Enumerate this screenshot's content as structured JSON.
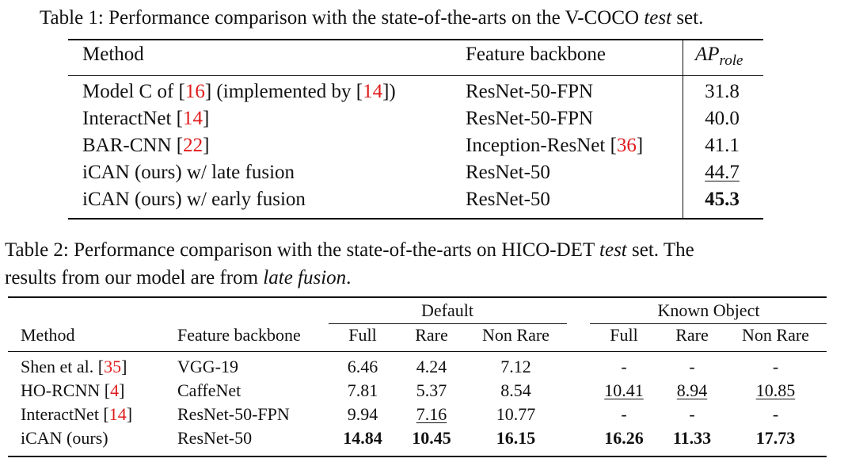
{
  "table1": {
    "caption_prefix": "Table 1: Performance comparison with the state-of-the-arts on the V-COCO ",
    "caption_italic": "test",
    "caption_suffix": " set.",
    "headers": {
      "method": "Method",
      "backbone": "Feature backbone",
      "ap_base": "AP",
      "ap_sub": "role"
    },
    "rows": [
      {
        "m1": "Model C of [",
        "r1": "16",
        "m2": "] (implemented by [",
        "r2": "14",
        "m3": "])",
        "backbone": "ResNet-50-FPN",
        "b_ref": "",
        "ap": "31.8"
      },
      {
        "m1": "InteractNet [",
        "r1": "14",
        "m2": "]",
        "r2": "",
        "m3": "",
        "backbone": "ResNet-50-FPN",
        "b_ref": "",
        "ap": "40.0"
      },
      {
        "m1": "BAR-CNN [",
        "r1": "22",
        "m2": "]",
        "r2": "",
        "m3": "",
        "backbone": "Inception-ResNet [",
        "b_ref": "36",
        "ap": "41.1"
      },
      {
        "m1": "iCAN (ours) w/ late fusion",
        "r1": "",
        "m2": "",
        "r2": "",
        "m3": "",
        "backbone": "ResNet-50",
        "b_ref": "",
        "ap": "44.7"
      },
      {
        "m1": "iCAN (ours) w/ early fusion",
        "r1": "",
        "m2": "",
        "r2": "",
        "m3": "",
        "backbone": "ResNet-50",
        "b_ref": "",
        "ap": "45.3"
      }
    ]
  },
  "table2": {
    "caption_line1_prefix": "Table 2: Performance comparison with the state-of-the-arts on HICO-DET ",
    "caption_line1_italic": "test",
    "caption_line1_suffix": " set. The",
    "caption_line2_prefix": "results from our model are from ",
    "caption_line2_italic": "late fusion",
    "caption_line2_suffix": ".",
    "group_default": "Default",
    "group_known": "Known Object",
    "headers": [
      "Method",
      "Feature backbone",
      "Full",
      "Rare",
      "Non Rare",
      "Full",
      "Rare",
      "Non Rare"
    ],
    "rows": [
      {
        "m1": "Shen et al. [",
        "ref": "35",
        "m2": "]",
        "backbone": "VGG-19",
        "vals": [
          "6.46",
          "4.24",
          "7.12",
          "-",
          "-",
          "-"
        ]
      },
      {
        "m1": "HO-RCNN  [",
        "ref": "4",
        "m2": "]",
        "backbone": "CaffeNet",
        "vals": [
          "7.81",
          "5.37",
          "8.54",
          "10.41",
          "8.94",
          "10.85"
        ]
      },
      {
        "m1": "InteractNet  [",
        "ref": "14",
        "m2": "]",
        "backbone": "ResNet-50-FPN",
        "vals": [
          "9.94",
          "7.16",
          "10.77",
          "-",
          "-",
          "-"
        ]
      },
      {
        "m1": "iCAN (ours)",
        "ref": "",
        "m2": "",
        "backbone": "ResNet-50",
        "vals": [
          "14.84",
          "10.45",
          "16.15",
          "16.26",
          "11.33",
          "17.73"
        ]
      }
    ]
  }
}
